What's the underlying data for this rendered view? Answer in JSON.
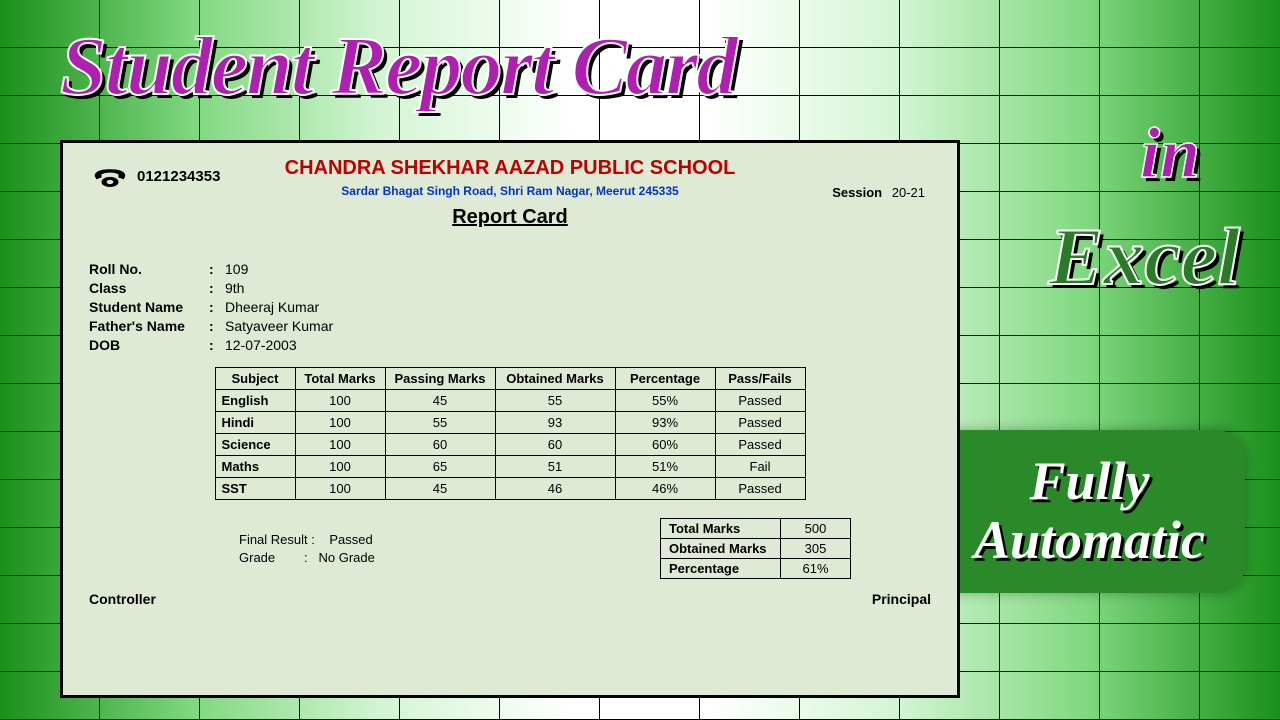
{
  "overlay": {
    "title": "Student Report Card",
    "in": "in",
    "excel": "Excel",
    "badge_line1": "Fully",
    "badge_line2": "Automatic",
    "title_color": "#b020b0",
    "excel_color": "#2a7a2a",
    "badge_bg": "#2a8a2a"
  },
  "card": {
    "phone": "0121234353",
    "school_name": "CHANDRA SHEKHAR AAZAD PUBLIC SCHOOL",
    "school_addr": "Sardar Bhagat Singh Road, Shri Ram Nagar, Meerut 245335",
    "session_label": "Session",
    "session_value": "20-21",
    "report_title": "Report Card",
    "bg_color": "#dfead4",
    "school_name_color": "#c00000",
    "school_addr_color": "#0033cc"
  },
  "info": {
    "labels": {
      "roll": "Roll No.",
      "class": "Class",
      "student": "Student Name",
      "father": "Father's Name",
      "dob": "DOB"
    },
    "roll": "109",
    "class": "9th",
    "student": "Dheeraj Kumar",
    "father": "Satyaveer Kumar",
    "dob": "12-07-2003"
  },
  "marks": {
    "headers": [
      "Subject",
      "Total Marks",
      "Passing Marks",
      "Obtained Marks",
      "Percentage",
      "Pass/Fails"
    ],
    "rows": [
      {
        "subject": "English",
        "total": 100,
        "passing": 45,
        "obtained": 55,
        "percent": "55%",
        "result": "Passed"
      },
      {
        "subject": "Hindi",
        "total": 100,
        "passing": 55,
        "obtained": 93,
        "percent": "93%",
        "result": "Passed"
      },
      {
        "subject": "Science",
        "total": 100,
        "passing": 60,
        "obtained": 60,
        "percent": "60%",
        "result": "Passed"
      },
      {
        "subject": "Maths",
        "total": 100,
        "passing": 65,
        "obtained": 51,
        "percent": "51%",
        "result": "Fail"
      },
      {
        "subject": "SST",
        "total": 100,
        "passing": 45,
        "obtained": 46,
        "percent": "46%",
        "result": "Passed"
      }
    ]
  },
  "final": {
    "result_label": "Final Result :",
    "result_value": "Passed",
    "grade_label": "Grade",
    "grade_value": "No Grade"
  },
  "summary": {
    "rows": [
      {
        "label": "Total Marks",
        "value": "500"
      },
      {
        "label": "Obtained Marks",
        "value": "305"
      },
      {
        "label": "Percentage",
        "value": "61%"
      }
    ]
  },
  "footer": {
    "left": "Controller",
    "right": "Principal"
  }
}
